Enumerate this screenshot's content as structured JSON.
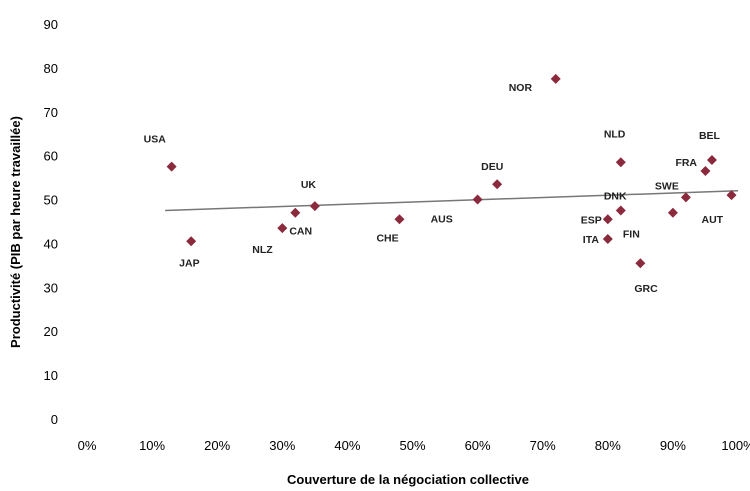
{
  "chart_data": {
    "type": "scatter",
    "title": "",
    "xlabel": "Couverture de la négociation collective",
    "ylabel": "Productivité (PIB par heure travaillée)",
    "xlim": [
      0,
      1
    ],
    "ylim": [
      0,
      90
    ],
    "x_ticks": [
      "0%",
      "10%",
      "20%",
      "30%",
      "40%",
      "50%",
      "60%",
      "70%",
      "80%",
      "90%",
      "100%"
    ],
    "y_ticks": [
      "0",
      "10",
      "20",
      "30",
      "40",
      "50",
      "60",
      "70",
      "80",
      "90"
    ],
    "grid": false,
    "marker_color": "#8b2a3c",
    "trendline": {
      "x": [
        0.12,
        1.0
      ],
      "y": [
        47.5,
        52.0
      ],
      "color": "#777777"
    },
    "points": [
      {
        "label": "USA",
        "x": 0.13,
        "y": 57.5
      },
      {
        "label": "JAP",
        "x": 0.16,
        "y": 40.5
      },
      {
        "label": "NLZ",
        "x": 0.3,
        "y": 43.5
      },
      {
        "label": "CAN",
        "x": 0.32,
        "y": 47.0
      },
      {
        "label": "UK",
        "x": 0.35,
        "y": 48.5
      },
      {
        "label": "CHE",
        "x": 0.48,
        "y": 45.5
      },
      {
        "label": "AUS",
        "x": 0.6,
        "y": 50.0
      },
      {
        "label": "DEU",
        "x": 0.63,
        "y": 53.5
      },
      {
        "label": "NOR",
        "x": 0.72,
        "y": 77.5
      },
      {
        "label": "ESP",
        "x": 0.8,
        "y": 45.5
      },
      {
        "label": "ITA",
        "x": 0.8,
        "y": 41.0
      },
      {
        "label": "DNK",
        "x": 0.82,
        "y": 47.5
      },
      {
        "label": "NLD",
        "x": 0.82,
        "y": 58.5
      },
      {
        "label": "GRC",
        "x": 0.85,
        "y": 35.5
      },
      {
        "label": "FIN",
        "x": 0.9,
        "y": 47.0
      },
      {
        "label": "SWE",
        "x": 0.92,
        "y": 50.5
      },
      {
        "label": "FRA",
        "x": 0.95,
        "y": 56.5
      },
      {
        "label": "BEL",
        "x": 0.96,
        "y": 59.0
      },
      {
        "label": "AUT",
        "x": 0.99,
        "y": 51.0
      }
    ]
  }
}
